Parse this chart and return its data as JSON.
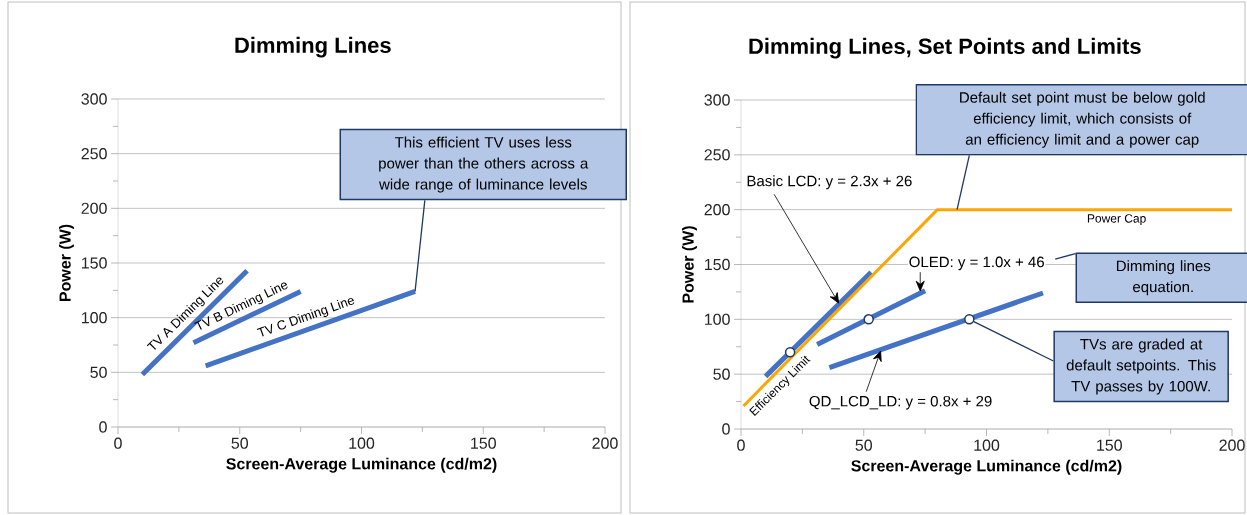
{
  "chart_data": [
    {
      "type": "line",
      "title": "Dimming Lines",
      "xlabel": "Screen-Average Luminance (cd/m2)",
      "ylabel": "Power (W)",
      "xlim": [
        0,
        200
      ],
      "ylim": [
        0,
        300
      ],
      "xticks": [
        0,
        50,
        100,
        150,
        200
      ],
      "yticks": [
        0,
        50,
        100,
        150,
        200,
        250,
        300
      ],
      "grid": "y",
      "marker": "none",
      "series": [
        {
          "name": "TV A Diming Line",
          "color": "#4472c4",
          "x": [
            10,
            53
          ],
          "values": [
            48,
            143
          ]
        },
        {
          "name": "TV B Diming Line",
          "color": "#4472c4",
          "x": [
            31,
            75
          ],
          "values": [
            77,
            124
          ]
        },
        {
          "name": "TV C Diming Line",
          "color": "#4472c4",
          "x": [
            36,
            122
          ],
          "values": [
            56,
            124
          ]
        }
      ],
      "annotations": [
        {
          "text": "This efficient TV uses less power than the others across a wide range of luminance levels",
          "x": 122,
          "y": 124
        }
      ]
    },
    {
      "type": "line",
      "title": "Dimming Lines, Set Points and Limits",
      "xlabel": "Screen-Average Luminance (cd/m2)",
      "ylabel": "Power (W)",
      "xlim": [
        0,
        200
      ],
      "ylim": [
        0,
        300
      ],
      "xticks": [
        0,
        50,
        100,
        150,
        200
      ],
      "yticks": [
        0,
        50,
        100,
        150,
        200,
        250,
        300
      ],
      "grid": "y",
      "marker": "none",
      "series": [
        {
          "color": "#4472c4",
          "x": [
            10,
            53
          ],
          "values": [
            48,
            143
          ]
        },
        {
          "color": "#4472c4",
          "x": [
            31,
            75
          ],
          "values": [
            77,
            126
          ]
        },
        {
          "color": "#4472c4",
          "x": [
            36,
            123
          ],
          "values": [
            56,
            124
          ]
        },
        {
          "color": "#ffa500",
          "x": [
            1,
            80,
            200
          ],
          "values": [
            21,
            200,
            200
          ]
        },
        {
          "type": "scatter",
          "marker": "circle",
          "color": "#203864",
          "x": [
            20,
            52,
            93
          ],
          "values": [
            70,
            100,
            100
          ]
        }
      ],
      "annotations": [
        {
          "text": "Default set point must be below gold efficiency limit, which consists of an efficiency limit and a power cap",
          "x": 88,
          "y": 200
        },
        {
          "text": "Basic LCD: y = 2.3x + 26",
          "x": 40,
          "y": 114
        },
        {
          "text": "OLED: y = 1.0x + 46",
          "x": 73,
          "y": 125
        },
        {
          "text": "QD_LCD_LD: y = 0.8x + 29",
          "x": 57,
          "y": 72
        },
        "Dimming lines equation.",
        {
          "text": "TVs are graded at default setpoints. This TV passes by 100W.",
          "x": 93,
          "y": 100
        },
        {
          "text": "Power Cap",
          "x": 153,
          "y": 200
        },
        {
          "text": "Efficiency Limit",
          "x": 12,
          "y": 46
        }
      ]
    }
  ]
}
